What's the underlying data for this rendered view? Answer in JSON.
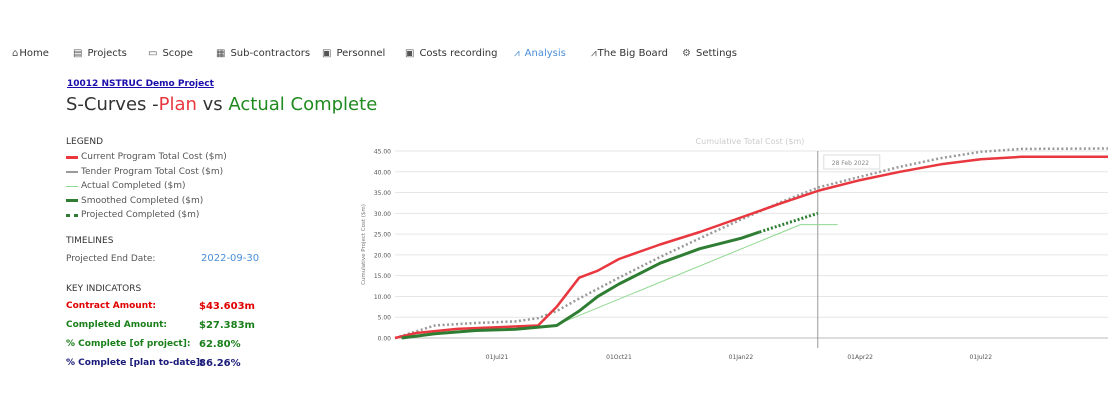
{
  "nav": [
    {
      "label": "Home",
      "icon": "home-icon",
      "glyph": "⌂",
      "active": false
    },
    {
      "label": "Projects",
      "icon": "projects-icon",
      "glyph": "▤",
      "active": false
    },
    {
      "label": "Scope",
      "icon": "scope-icon",
      "glyph": "▭",
      "active": false
    },
    {
      "label": "Sub-contractors",
      "icon": "subcontractors-icon",
      "glyph": "▦",
      "active": false
    },
    {
      "label": "Personnel",
      "icon": "personnel-icon",
      "glyph": "▣",
      "active": false
    },
    {
      "label": "Costs recording",
      "icon": "costs-icon",
      "glyph": "▣",
      "active": false
    },
    {
      "label": "Analysis",
      "icon": "analysis-icon",
      "glyph": "⩘",
      "active": true
    },
    {
      "label": "The Big Board",
      "icon": "bigboard-icon",
      "glyph": "⩘",
      "active": false
    },
    {
      "label": "Settings",
      "icon": "settings-icon",
      "glyph": "⚙",
      "active": false
    }
  ],
  "project": {
    "link": "10012 NSTRUC Demo Project"
  },
  "title": {
    "prefix": "S-Curves -",
    "plan": "Plan",
    "vs": " vs ",
    "actual": "Actual Complete"
  },
  "legend": {
    "heading": "LEGEND",
    "items": [
      {
        "label": "Current Program Total Cost ($m)",
        "style": "red"
      },
      {
        "label": "Tender Program Total Cost ($m)",
        "style": "grey"
      },
      {
        "label": "Actual Completed ($m)",
        "style": "lgreen"
      },
      {
        "label": "Smoothed Completed ($m)",
        "style": "green"
      },
      {
        "label": "Projected Completed ($m)",
        "style": "dots"
      }
    ]
  },
  "timelines": {
    "heading": "TIMELINES",
    "label": "Projected End Date:",
    "value": "2022-09-30"
  },
  "kpi": {
    "heading": "KEY INDICATORS",
    "rows": [
      {
        "label": "Contract Amount:",
        "value": "$43.603m",
        "color": "red"
      },
      {
        "label": "Completed Amount:",
        "value": "$27.383m",
        "color": "green"
      },
      {
        "label": "% Complete [of project]:",
        "value": "62.80%",
        "color": "green"
      },
      {
        "label": "% Complete [plan to-date]:",
        "value": "86.26%",
        "color": "navy"
      }
    ]
  },
  "chart_data": {
    "type": "line",
    "title": "Cumulative Total Cost ($m)",
    "ylabel": "Cumulative Project Cost ($m)",
    "xlabel": "",
    "ylim": [
      0,
      45
    ],
    "yticks": [
      "0.00",
      "5.00",
      "10.00",
      "15.00",
      "20.00",
      "25.00",
      "30.00",
      "35.00",
      "40.00",
      "45.00"
    ],
    "xticks": [
      {
        "label": "01Jul21",
        "date": "2021-07-01"
      },
      {
        "label": "01Oct21",
        "date": "2021-10-01"
      },
      {
        "label": "01Jan22",
        "date": "2022-01-01"
      },
      {
        "label": "01Apr22",
        "date": "2022-04-01"
      },
      {
        "label": "01Jul22",
        "date": "2022-07-01"
      }
    ],
    "xrange": [
      "2021-04-15",
      "2022-10-05"
    ],
    "marker": {
      "label": "28 Feb 2022",
      "date": "2022-02-28"
    },
    "colors": {
      "current": "#e8373e",
      "tender": "#999999",
      "actual": "#8fd88f",
      "smoothed": "#2e7d32",
      "projected": "#2e7d32"
    },
    "series": [
      {
        "name": "Current Program Total Cost ($m)",
        "key": "current",
        "points": [
          [
            "2021-04-15",
            0
          ],
          [
            "2021-05-01",
            1.2
          ],
          [
            "2021-06-01",
            2.2
          ],
          [
            "2021-07-01",
            2.6
          ],
          [
            "2021-08-01",
            3.0
          ],
          [
            "2021-08-15",
            7.5
          ],
          [
            "2021-09-01",
            14.5
          ],
          [
            "2021-09-15",
            16.2
          ],
          [
            "2021-10-01",
            19.0
          ],
          [
            "2021-11-01",
            22.5
          ],
          [
            "2021-12-01",
            25.5
          ],
          [
            "2022-01-01",
            29.0
          ],
          [
            "2022-02-01",
            32.5
          ],
          [
            "2022-03-01",
            35.5
          ],
          [
            "2022-04-01",
            38.0
          ],
          [
            "2022-05-01",
            40.0
          ],
          [
            "2022-06-01",
            41.8
          ],
          [
            "2022-07-01",
            43.0
          ],
          [
            "2022-08-01",
            43.6
          ],
          [
            "2022-10-05",
            43.6
          ]
        ]
      },
      {
        "name": "Tender Program Total Cost ($m)",
        "key": "tender",
        "points": [
          [
            "2021-04-15",
            0
          ],
          [
            "2021-05-15",
            3.0
          ],
          [
            "2021-06-15",
            3.6
          ],
          [
            "2021-07-15",
            4.0
          ],
          [
            "2021-08-01",
            4.8
          ],
          [
            "2021-08-15",
            6.5
          ],
          [
            "2021-09-01",
            9.5
          ],
          [
            "2021-10-01",
            14.5
          ],
          [
            "2021-11-01",
            19.5
          ],
          [
            "2021-12-01",
            24.0
          ],
          [
            "2022-01-01",
            28.5
          ],
          [
            "2022-02-01",
            32.8
          ],
          [
            "2022-03-01",
            36.3
          ],
          [
            "2022-04-01",
            38.8
          ],
          [
            "2022-05-01",
            41.2
          ],
          [
            "2022-06-01",
            43.3
          ],
          [
            "2022-07-01",
            44.8
          ],
          [
            "2022-08-01",
            45.5
          ],
          [
            "2022-10-05",
            45.6
          ]
        ]
      },
      {
        "name": "Actual Completed ($m)",
        "key": "actual",
        "points": [
          [
            "2021-08-01",
            2.5
          ],
          [
            "2021-08-15",
            3.2
          ],
          [
            "2022-02-15",
            27.3
          ],
          [
            "2022-03-15",
            27.3
          ]
        ]
      },
      {
        "name": "Smoothed Completed ($m)",
        "key": "smoothed",
        "points": [
          [
            "2021-04-20",
            0
          ],
          [
            "2021-05-15",
            1.0
          ],
          [
            "2021-06-15",
            1.8
          ],
          [
            "2021-07-15",
            2.1
          ],
          [
            "2021-08-15",
            3.0
          ],
          [
            "2021-09-01",
            6.5
          ],
          [
            "2021-09-15",
            10.0
          ],
          [
            "2021-10-01",
            13.0
          ],
          [
            "2021-11-01",
            18.0
          ],
          [
            "2021-12-01",
            21.5
          ],
          [
            "2022-01-01",
            24.0
          ],
          [
            "2022-01-15",
            25.5
          ]
        ]
      },
      {
        "name": "Projected Completed ($m)",
        "key": "projected",
        "points": [
          [
            "2022-01-15",
            25.5
          ],
          [
            "2022-02-28",
            30.0
          ]
        ]
      }
    ]
  }
}
